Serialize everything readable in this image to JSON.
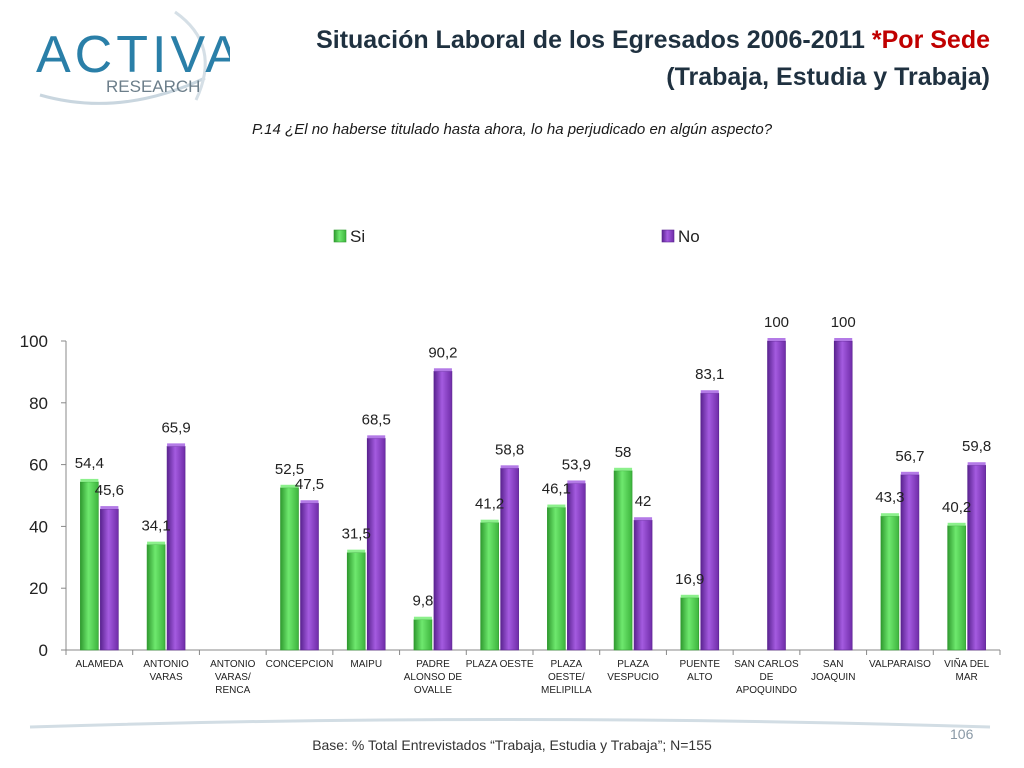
{
  "header": {
    "title_main": "Situación Laboral de los Egresados 2006-2011 ",
    "title_accent": "*Por Sede",
    "title_line2": "(Trabaja, Estudia y Trabaja)",
    "question": "P.14 ¿El no haberse titulado hasta ahora, lo ha perjudicado en algún aspecto?",
    "logo_text": "ACTIVA",
    "logo_sub": "RESEARCH"
  },
  "footer": {
    "base_note": "Base: % Total Entrevistados “Trabaja, Estudia y Trabaja”; N=155",
    "page_number": "106"
  },
  "colors": {
    "si": "#4fd64f",
    "si_dark": "#2f9a2f",
    "no": "#8b3fc4",
    "no_dark": "#5a2390",
    "title": "#1f3140",
    "accent": "#c00000"
  },
  "chart_data": {
    "type": "bar",
    "title": "",
    "xlabel": "",
    "ylabel": "",
    "ylim": [
      0,
      100
    ],
    "yticks": [
      "0",
      "20",
      "40",
      "60",
      "80",
      "100"
    ],
    "legend_position": "top",
    "categories": [
      [
        "ALAMEDA"
      ],
      [
        "ANTONIO",
        "VARAS"
      ],
      [
        "ANTONIO",
        "VARAS/",
        "RENCA"
      ],
      [
        "CONCEPCION"
      ],
      [
        "MAIPU"
      ],
      [
        "PADRE",
        "ALONSO DE",
        "OVALLE"
      ],
      [
        "PLAZA OESTE"
      ],
      [
        "PLAZA",
        "OESTE/",
        "MELIPILLA"
      ],
      [
        "PLAZA",
        "VESPUCIO"
      ],
      [
        "PUENTE",
        "ALTO"
      ],
      [
        "SAN CARLOS",
        "DE",
        "APOQUINDO"
      ],
      [
        "SAN",
        "JOAQUIN"
      ],
      [
        "VALPARAISO"
      ],
      [
        "VIÑA DEL",
        "MAR"
      ]
    ],
    "series": [
      {
        "name": "Si",
        "values": [
          54.4,
          34.1,
          null,
          52.5,
          31.5,
          9.8,
          41.2,
          46.1,
          58,
          16.9,
          null,
          null,
          43.3,
          40.2
        ],
        "labels": [
          "54,4",
          "34,1",
          "",
          "52,5",
          "31,5",
          "9,8",
          "41,2",
          "46,1",
          "58",
          "16,9",
          "",
          "",
          "43,3",
          "40,2"
        ]
      },
      {
        "name": "No",
        "values": [
          45.6,
          65.9,
          null,
          47.5,
          68.5,
          90.2,
          58.8,
          53.9,
          42,
          83.1,
          100,
          100,
          56.7,
          59.8
        ],
        "labels": [
          "45,6",
          "65,9",
          "",
          "47,5",
          "68,5",
          "90,2",
          "58,8",
          "53,9",
          "42",
          "83,1",
          "100",
          "100",
          "56,7",
          "59,8"
        ]
      }
    ]
  }
}
